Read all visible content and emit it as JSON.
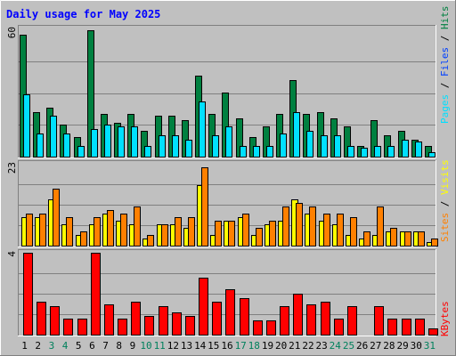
{
  "title": "Daily usage for May 2025",
  "colors": {
    "background": "#c0c0c0",
    "title": "#0000ff",
    "hits": "#008040",
    "files": "#00e0ff",
    "sites": "#ffff00",
    "visits": "#ff8000",
    "kbytes": "#ff0000",
    "weekend_day": "#00805c",
    "weekday_day": "#000000"
  },
  "chart_data": [
    {
      "type": "bar",
      "panel": "top",
      "ymax_label": "60",
      "ylim": [
        0,
        60
      ],
      "grid": true,
      "legend": [
        "Pages",
        "Files",
        "Hits"
      ],
      "categories": [
        "1",
        "2",
        "3",
        "4",
        "5",
        "6",
        "7",
        "8",
        "9",
        "10",
        "11",
        "12",
        "13",
        "14",
        "15",
        "16",
        "17",
        "18",
        "19",
        "20",
        "21",
        "22",
        "23",
        "24",
        "25",
        "26",
        "27",
        "28",
        "29",
        "30",
        "31"
      ],
      "series": [
        {
          "name": "Hits",
          "values": [
            57,
            21,
            23,
            15,
            9,
            59,
            20,
            16,
            20,
            12,
            19,
            19,
            17,
            38,
            20,
            30,
            18,
            9,
            14,
            20,
            36,
            20,
            21,
            18,
            14,
            5,
            17,
            10,
            12,
            8,
            5
          ]
        },
        {
          "name": "Files",
          "values": [
            29,
            11,
            19,
            11,
            5,
            13,
            15,
            14,
            14,
            5,
            10,
            10,
            8,
            26,
            10,
            14,
            5,
            5,
            5,
            11,
            21,
            12,
            10,
            10,
            5,
            4,
            5,
            5,
            8,
            7,
            2
          ]
        },
        {
          "name": "Pages",
          "values": [
            0,
            0,
            0,
            0,
            0,
            0,
            0,
            0,
            0,
            0,
            0,
            0,
            0,
            0,
            0,
            0,
            0,
            0,
            0,
            0,
            0,
            0,
            0,
            0,
            0,
            0,
            0,
            0,
            0,
            0,
            0
          ]
        }
      ]
    },
    {
      "type": "bar",
      "panel": "middle",
      "ymax_label": "23",
      "ylim": [
        0,
        23
      ],
      "grid": true,
      "legend": [
        "Sites",
        "Visits"
      ],
      "categories": [
        "1",
        "2",
        "3",
        "4",
        "5",
        "6",
        "7",
        "8",
        "9",
        "10",
        "11",
        "12",
        "13",
        "14",
        "15",
        "16",
        "17",
        "18",
        "19",
        "20",
        "21",
        "22",
        "23",
        "24",
        "25",
        "26",
        "27",
        "28",
        "29",
        "30",
        "31"
      ],
      "series": [
        {
          "name": "Sites",
          "values": [
            8,
            8,
            13,
            6,
            3,
            6,
            9,
            7,
            6,
            2,
            6,
            6,
            5,
            17,
            3,
            7,
            8,
            3,
            6,
            7,
            13,
            9,
            7,
            6,
            3,
            2,
            3,
            4,
            4,
            4,
            1
          ]
        },
        {
          "name": "Visits",
          "values": [
            9,
            9,
            16,
            8,
            4,
            8,
            10,
            9,
            11,
            3,
            6,
            8,
            8,
            22,
            7,
            7,
            9,
            5,
            7,
            11,
            12,
            11,
            9,
            9,
            8,
            4,
            11,
            5,
            4,
            4,
            2
          ]
        }
      ]
    },
    {
      "type": "bar",
      "panel": "bottom",
      "ymax_label": "4",
      "ylim": [
        0,
        4
      ],
      "grid": true,
      "legend": [
        "KBytes"
      ],
      "categories": [
        "1",
        "2",
        "3",
        "4",
        "5",
        "6",
        "7",
        "8",
        "9",
        "10",
        "11",
        "12",
        "13",
        "14",
        "15",
        "16",
        "17",
        "18",
        "19",
        "20",
        "21",
        "22",
        "23",
        "24",
        "25",
        "26",
        "27",
        "28",
        "29",
        "30",
        "31"
      ],
      "series": [
        {
          "name": "KBytes",
          "values": [
            4.0,
            1.6,
            1.4,
            0.8,
            0.8,
            4.0,
            1.5,
            0.8,
            1.6,
            0.9,
            1.4,
            1.1,
            0.9,
            2.8,
            1.6,
            2.2,
            1.8,
            0.7,
            0.7,
            1.4,
            2.0,
            1.5,
            1.6,
            0.8,
            1.4,
            0.0,
            1.4,
            0.8,
            0.8,
            0.8,
            0.3
          ]
        }
      ]
    }
  ],
  "weekend_days": [
    3,
    4,
    10,
    11,
    17,
    18,
    24,
    25,
    31
  ]
}
